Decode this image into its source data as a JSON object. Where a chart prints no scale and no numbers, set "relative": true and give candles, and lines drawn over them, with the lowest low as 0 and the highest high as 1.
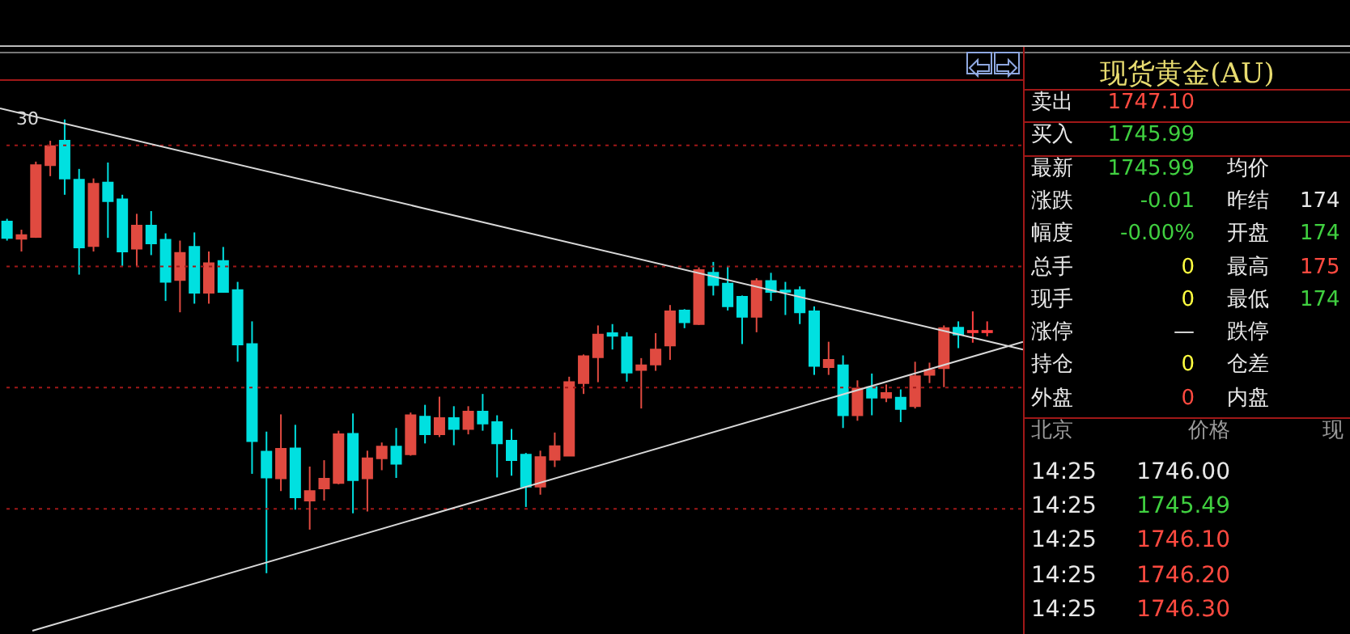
{
  "chart_data": [
    {
      "type": "candlestick",
      "relative": true,
      "tick_labels": false,
      "categories": [
        null,
        null,
        null,
        null,
        null,
        null,
        null,
        null,
        null,
        null,
        null,
        null,
        null,
        null,
        null,
        null,
        null,
        null,
        null,
        null,
        null,
        null,
        null,
        null,
        null,
        null,
        null,
        null,
        null,
        null,
        null,
        null,
        null,
        null,
        null,
        null,
        null,
        null,
        null,
        null,
        null,
        null,
        null,
        null,
        null,
        null,
        null,
        null,
        null,
        null,
        null,
        null,
        null,
        null,
        null,
        null,
        null,
        null,
        null,
        null,
        null,
        null,
        null,
        null,
        null,
        null,
        null,
        null,
        null
      ],
      "ohlc": [
        [
          0.775,
          0.781,
          0.733,
          0.739
        ],
        [
          0.737,
          0.757,
          0.709,
          0.745
        ],
        [
          0.741,
          0.907,
          0.739,
          0.899
        ],
        [
          0.899,
          0.953,
          0.875,
          0.941
        ],
        [
          0.953,
          1.0,
          0.834,
          0.87
        ],
        [
          0.867,
          0.891,
          0.658,
          0.718
        ],
        [
          0.721,
          0.87,
          0.709,
          0.858
        ],
        [
          0.861,
          0.905,
          0.739,
          0.82
        ],
        [
          0.824,
          0.834,
          0.677,
          0.709
        ],
        [
          0.715,
          0.792,
          0.677,
          0.766
        ],
        [
          0.766,
          0.798,
          0.701,
          0.727
        ],
        [
          0.735,
          0.749,
          0.6,
          0.642
        ],
        [
          0.646,
          0.733,
          0.575,
          0.706
        ],
        [
          0.719,
          0.751,
          0.594,
          0.618
        ],
        [
          0.618,
          0.709,
          0.594,
          0.683
        ],
        [
          0.688,
          0.719,
          0.618,
          0.62
        ],
        [
          0.624,
          0.642,
          0.466,
          0.504
        ],
        [
          0.505,
          0.555,
          0.219,
          0.291
        ],
        [
          0.268,
          0.312,
          0.0,
          0.211
        ],
        [
          0.209,
          0.35,
          0.181,
          0.274
        ],
        [
          0.275,
          0.327,
          0.14,
          0.167
        ],
        [
          0.16,
          0.235,
          0.096,
          0.181
        ],
        [
          0.187,
          0.249,
          0.16,
          0.208
        ],
        [
          0.199,
          0.314,
          0.196,
          0.306
        ],
        [
          0.307,
          0.352,
          0.132,
          0.205
        ],
        [
          0.209,
          0.27,
          0.136,
          0.253
        ],
        [
          0.253,
          0.288,
          0.227,
          0.279
        ],
        [
          0.279,
          0.32,
          0.21,
          0.241
        ],
        [
          0.262,
          0.354,
          0.259,
          0.348
        ],
        [
          0.345,
          0.371,
          0.286,
          0.306
        ],
        [
          0.306,
          0.389,
          0.3,
          0.342
        ],
        [
          0.342,
          0.368,
          0.282,
          0.318
        ],
        [
          0.318,
          0.368,
          0.306,
          0.356
        ],
        [
          0.356,
          0.395,
          0.314,
          0.33
        ],
        [
          0.333,
          0.348,
          0.211,
          0.286
        ],
        [
          0.292,
          0.318,
          0.215,
          0.249
        ],
        [
          0.261,
          0.265,
          0.146,
          0.191
        ],
        [
          0.191,
          0.27,
          0.173,
          0.256
        ],
        [
          0.25,
          0.31,
          0.234,
          0.28
        ],
        [
          0.259,
          0.433,
          0.259,
          0.421
        ],
        [
          0.419,
          0.482,
          0.395,
          0.478
        ],
        [
          0.476,
          0.546,
          0.421,
          0.526
        ],
        [
          0.529,
          0.549,
          0.493,
          0.523
        ],
        [
          0.52,
          0.531,
          0.422,
          0.442
        ],
        [
          0.448,
          0.474,
          0.363,
          0.458
        ],
        [
          0.46,
          0.529,
          0.446,
          0.493
        ],
        [
          0.502,
          0.591,
          0.47,
          0.577
        ],
        [
          0.579,
          0.582,
          0.54,
          0.553
        ],
        [
          0.549,
          0.674,
          0.547,
          0.668
        ],
        [
          0.662,
          0.686,
          0.612,
          0.635
        ],
        [
          0.638,
          0.677,
          0.579,
          0.588
        ],
        [
          0.609,
          0.612,
          0.505,
          0.565
        ],
        [
          0.565,
          0.65,
          0.531,
          0.644
        ],
        [
          0.644,
          0.662,
          0.6,
          0.62
        ],
        [
          0.623,
          0.642,
          0.569,
          0.62
        ],
        [
          0.624,
          0.632,
          0.549,
          0.575
        ],
        [
          0.577,
          0.588,
          0.437,
          0.457
        ],
        [
          0.454,
          0.51,
          0.437,
          0.47
        ],
        [
          0.458,
          0.48,
          0.32,
          0.348
        ],
        [
          0.348,
          0.425,
          0.336,
          0.407
        ],
        [
          0.41,
          0.44,
          0.348,
          0.387
        ],
        [
          0.387,
          0.416,
          0.377,
          0.397
        ],
        [
          0.387,
          0.405,
          0.333,
          0.362
        ],
        [
          0.368,
          0.466,
          0.363,
          0.434
        ],
        [
          0.437,
          0.464,
          0.419,
          0.448
        ],
        [
          0.452,
          0.546,
          0.41,
          0.54
        ],
        [
          0.541,
          0.555,
          0.496,
          0.526
        ],
        [
          0.531,
          0.577,
          0.508,
          0.534
        ],
        [
          0.531,
          0.555,
          0.522,
          0.534
        ]
      ],
      "colors": [
        "#00e0e0",
        "#e04a40",
        "#e04a40",
        "#e04a40",
        "#00e0e0",
        "#00e0e0",
        "#e04a40",
        "#00e0e0",
        "#00e0e0",
        "#e04a40",
        "#00e0e0",
        "#00e0e0",
        "#e04a40",
        "#00e0e0",
        "#e04a40",
        "#00e0e0",
        "#00e0e0",
        "#00e0e0",
        "#00e0e0",
        "#e04a40",
        "#00e0e0",
        "#e04a40",
        "#e04a40",
        "#e04a40",
        "#00e0e0",
        "#e04a40",
        "#e04a40",
        "#00e0e0",
        "#e04a40",
        "#00e0e0",
        "#e04a40",
        "#00e0e0",
        "#e04a40",
        "#00e0e0",
        "#00e0e0",
        "#00e0e0",
        "#00e0e0",
        "#e04a40",
        "#e04a40",
        "#e04a40",
        "#e04a40",
        "#e04a40",
        "#00e0e0",
        "#00e0e0",
        "#e04a40",
        "#e04a40",
        "#e04a40",
        "#00e0e0",
        "#e04a40",
        "#00e0e0",
        "#00e0e0",
        "#00e0e0",
        "#e04a40",
        "#00e0e0",
        "#00e0e0",
        "#00e0e0",
        "#00e0e0",
        "#e04a40",
        "#00e0e0",
        "#e04a40",
        "#00e0e0",
        "#e04a40",
        "#00e0e0",
        "#e04a40",
        "#e04a40",
        "#e04a40",
        "#00e0e0",
        "#ff4040",
        "#ff4040"
      ],
      "ref_lines": [
        {
          "axis": "y",
          "value": 0.943,
          "color": "#a01818",
          "line_style": "dotted"
        },
        {
          "axis": "y",
          "value": 0.676,
          "color": "#a01818",
          "line_style": "dotted"
        },
        {
          "axis": "y",
          "value": 0.409,
          "color": "#a01818",
          "line_style": "dotted"
        },
        {
          "axis": "y",
          "value": 0.142,
          "color": "#a01818",
          "line_style": "dotted"
        }
      ],
      "annotations": [
        "30"
      ]
    },
    {
      "type": "other",
      "title": "现货黄金(AU)",
      "annotations": [
        "卖出",
        "1747.10",
        "买入",
        "1745.99",
        "最新",
        "1745.99",
        "均价",
        "涨跌",
        "-0.01",
        "昨结",
        "174",
        "幅度",
        "-0.00%",
        "开盘",
        "174",
        "总手",
        "0",
        "最高",
        "175",
        "现手",
        "0",
        "最低",
        "174",
        "涨停",
        "—",
        "跌停",
        "持仓",
        "0",
        "仓差",
        "外盘",
        "0",
        "内盘",
        "北京",
        "价格",
        "现",
        "14:25",
        "1746.00",
        "14:25",
        "1745.49",
        "14:25",
        "1746.10",
        "14:25",
        "1746.20",
        "14:25",
        "1746.30"
      ],
      "colors": [
        "#e8e8e8",
        "#ff4a40",
        "#e8e8e8",
        "#40d040",
        "#e8e8e8",
        "#40d040",
        "#e8e8e8",
        "#e8e8e8",
        "#40d040",
        "#e8e8e8",
        "#e8e8e8",
        "#e8e8e8",
        "#40d040",
        "#e8e8e8",
        "#40d040",
        "#e8e8e8",
        "#ffff40",
        "#e8e8e8",
        "#ff4a40",
        "#e8e8e8",
        "#ffff40",
        "#e8e8e8",
        "#40d040",
        "#e8e8e8",
        "#e8e8e8",
        "#e8e8e8",
        "#e8e8e8",
        "#ffff40",
        "#e8e8e8",
        "#e8e8e8",
        "#ff4a40",
        "#e8e8e8",
        "#9a9a9a",
        "#9a9a9a",
        "#9a9a9a",
        "#e8e8e8",
        "#e8e8e8",
        "#e8e8e8",
        "#40d040",
        "#e8e8e8",
        "#ff4a40",
        "#e8e8e8",
        "#ff4a40",
        "#e8e8e8",
        "#ff4a40"
      ]
    }
  ]
}
